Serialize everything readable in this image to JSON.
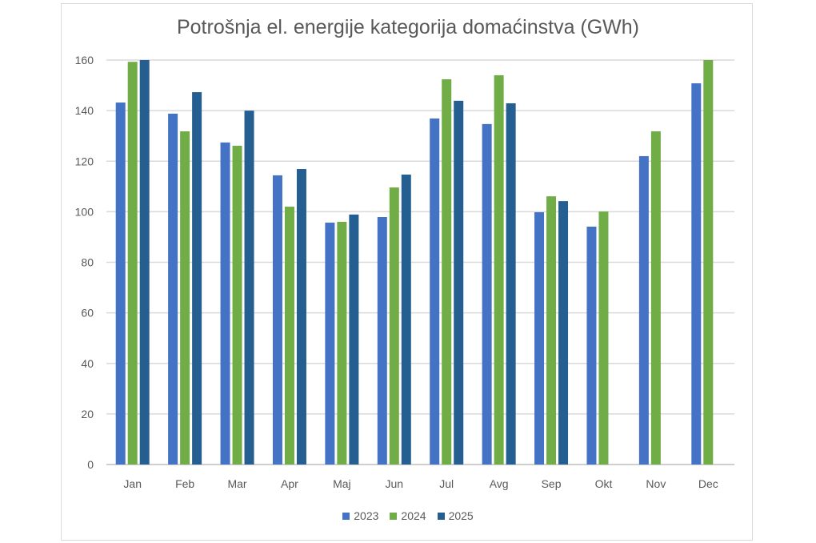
{
  "chart_data": {
    "type": "bar",
    "title": "Potrošnja el. energije kategorija domaćinstva (GWh)",
    "xlabel": "",
    "ylabel": "",
    "ylim": [
      0,
      160
    ],
    "yticks": [
      0,
      20,
      40,
      60,
      80,
      100,
      120,
      140,
      160
    ],
    "grid": true,
    "legend_position": "bottom",
    "categories": [
      "Jan",
      "Feb",
      "Mar",
      "Apr",
      "Maj",
      "Jun",
      "Jul",
      "Avg",
      "Sep",
      "Okt",
      "Nov",
      "Dec"
    ],
    "series": [
      {
        "name": "2023",
        "color": "#4472C4",
        "values": [
          143.2,
          138.8,
          127.4,
          114.4,
          95.7,
          97.9,
          136.9,
          134.7,
          99.8,
          94.1,
          122.0,
          150.8
        ]
      },
      {
        "name": "2024",
        "color": "#70AD47",
        "values": [
          159.3,
          131.8,
          126.1,
          102.0,
          96.0,
          109.6,
          152.4,
          154.0,
          106.1,
          100.1,
          131.8,
          160.0
        ]
      },
      {
        "name": "2025",
        "color": "#255E91",
        "values": [
          160.0,
          147.3,
          140.0,
          116.9,
          98.9,
          114.7,
          143.9,
          142.9,
          104.2,
          null,
          null,
          null
        ]
      }
    ]
  }
}
